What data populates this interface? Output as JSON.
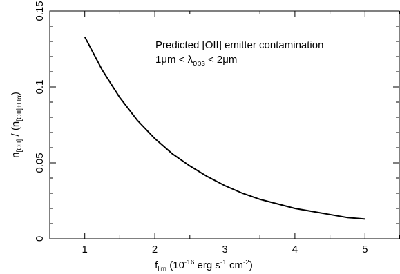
{
  "chart_data": {
    "type": "line",
    "annotation": {
      "line1": "Predicted [OII] emitter contamination",
      "line2_parts": [
        "1μm < λ",
        "obs",
        " < 2μm"
      ]
    },
    "xlabel_parts": [
      "f",
      "lim",
      " (10",
      "-16",
      " erg s",
      "-1",
      " cm",
      "-2",
      ")"
    ],
    "ylabel_parts": [
      "n",
      "[OII]",
      " / (n",
      "[OII]+Hα",
      ")"
    ],
    "xlim": [
      0.5,
      5.5
    ],
    "ylim": [
      0,
      0.15
    ],
    "x_ticks": [
      1,
      2,
      3,
      4,
      5
    ],
    "x_tick_labels": [
      "1",
      "2",
      "3",
      "4",
      "5"
    ],
    "y_ticks": [
      0,
      0.05,
      0.1,
      0.15
    ],
    "y_tick_labels": [
      "0",
      "0.05",
      "0.1",
      "0.15"
    ],
    "grid": false,
    "series": [
      {
        "x": [
          1.0,
          1.25,
          1.5,
          1.75,
          2.0,
          2.25,
          2.5,
          2.75,
          3.0,
          3.25,
          3.5,
          3.75,
          4.0,
          4.25,
          4.5,
          4.75,
          5.0
        ],
        "y": [
          0.133,
          0.111,
          0.093,
          0.078,
          0.066,
          0.056,
          0.048,
          0.041,
          0.035,
          0.03,
          0.026,
          0.023,
          0.02,
          0.018,
          0.016,
          0.014,
          0.013
        ]
      }
    ]
  }
}
